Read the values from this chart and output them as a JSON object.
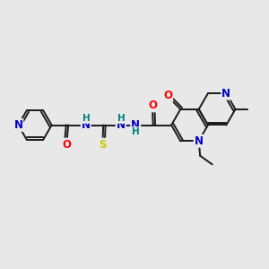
{
  "bg_color": "#e8e8e8",
  "bond_color": "#1a1a1a",
  "bond_width": 1.4,
  "atom_colors": {
    "N": "#0000cc",
    "O": "#ff0000",
    "S": "#cccc00",
    "H": "#008080",
    "C": "#1a1a1a"
  },
  "font_size": 8.5,
  "fig_size": [
    3.0,
    3.0
  ],
  "dpi": 100,
  "xlim": [
    0,
    10
  ],
  "ylim": [
    2,
    8.5
  ]
}
